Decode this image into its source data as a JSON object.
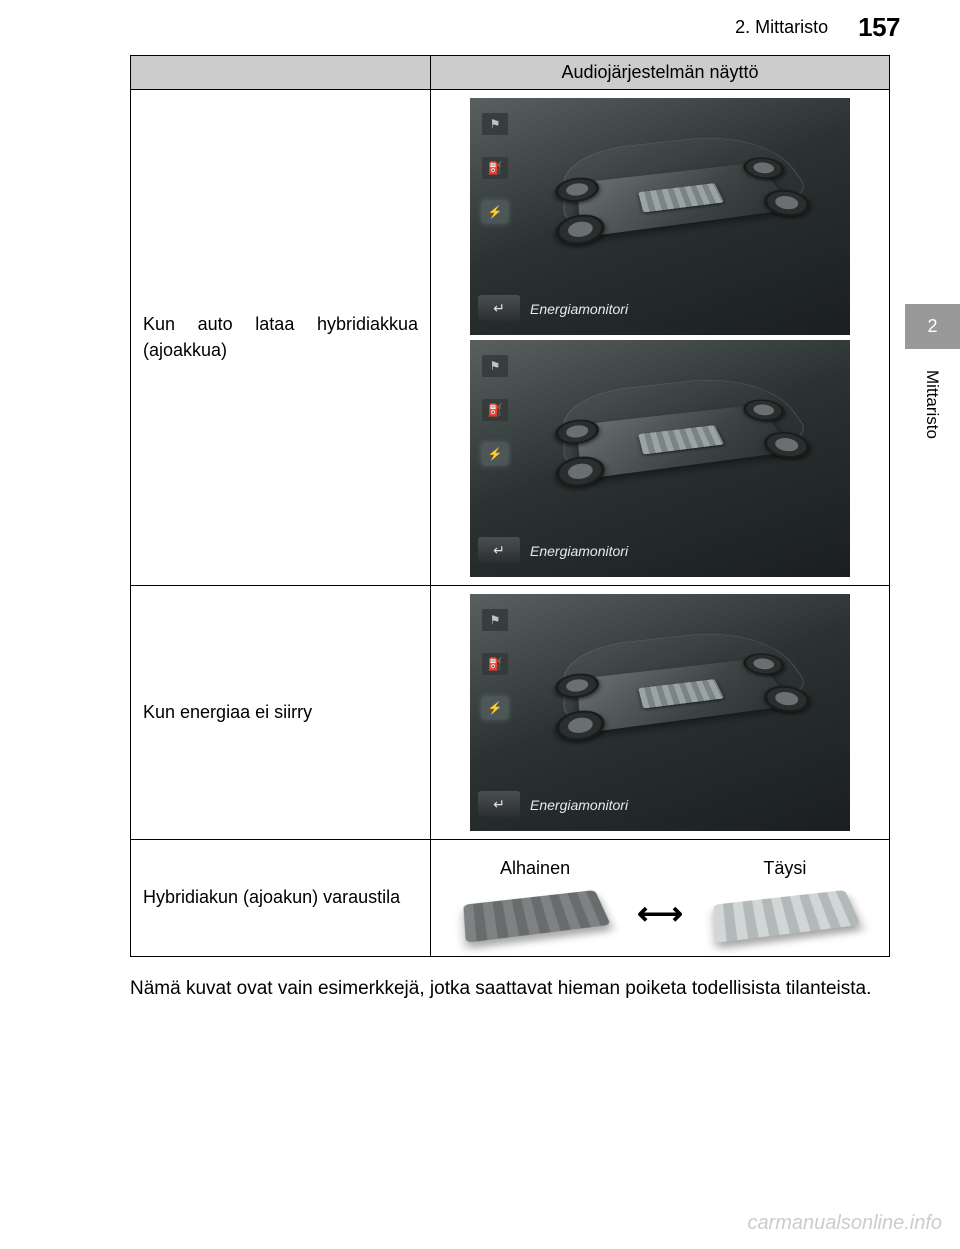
{
  "header": {
    "section": "2. Mittaristo",
    "page_number": "157"
  },
  "edge_tab": {
    "chapter_number": "2",
    "chapter_label": "Mittaristo"
  },
  "table": {
    "header_right": "Audiojärjestelmän näyttö",
    "rows": [
      {
        "label": "Kun auto lataa hybridiakkua (ajoakkua)"
      },
      {
        "label": "Kun energiaa ei siirry"
      },
      {
        "label": "Hybridiakun (ajoakun) varaustila"
      }
    ]
  },
  "monitor": {
    "label": "Energiamonitori",
    "back_glyph": "↵",
    "side_icons": [
      "flag-icon",
      "fuel-icon",
      "power-icon"
    ],
    "colors": {
      "bg_gradient_start": "#5a6060",
      "bg_gradient_mid": "#2b3232",
      "bg_gradient_end": "#1a1e1e",
      "label_color": "#e8eaea"
    }
  },
  "battery": {
    "low_label": "Alhainen",
    "full_label": "Täysi",
    "arrow": "⟷"
  },
  "footnote": "Nämä kuvat ovat vain esimerkkejä, jotka saattavat hieman poiketa todellisista tilanteista.",
  "watermark": "carmanualsonline.info"
}
